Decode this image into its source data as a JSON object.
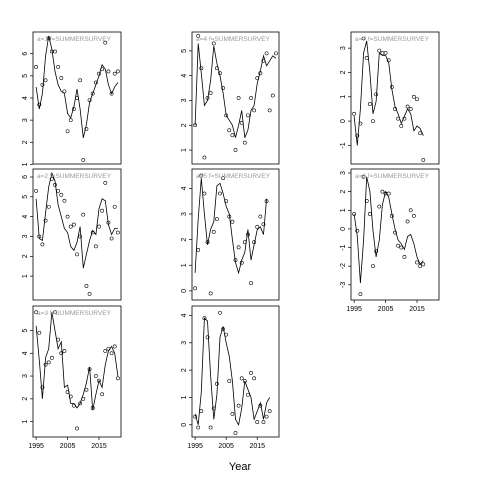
{
  "figure": {
    "xlabel": "Year"
  },
  "chart_data": [
    {
      "type": "line",
      "label": "a=1",
      "fleet": "f=SUMMERSURVEY",
      "x": [
        1995,
        1996,
        1997,
        1998,
        1999,
        2000,
        2001,
        2002,
        2003,
        2004,
        2005,
        2006,
        2007,
        2008,
        2009,
        2010,
        2011,
        2012,
        2013,
        2014,
        2015,
        2016,
        2017,
        2018,
        2019,
        2020,
        2021
      ],
      "observed": [
        5.4,
        3.7,
        4.6,
        4.8,
        6.7,
        6.1,
        6.1,
        5.4,
        4.9,
        4.3,
        2.5,
        3.0,
        3.5,
        4.0,
        4.8,
        1.2,
        2.6,
        3.9,
        4.2,
        4.7,
        5.1,
        5.3,
        6.5,
        5.2,
        4.2,
        5.1,
        5.2
      ],
      "fitted": [
        4.5,
        3.5,
        4.2,
        5.9,
        6.8,
        6.2,
        5.2,
        4.6,
        4.3,
        4.2,
        3.3,
        3.1,
        3.6,
        4.4,
        3.5,
        2.2,
        2.8,
        3.8,
        4.2,
        4.6,
        5.0,
        5.5,
        5.3,
        4.6,
        4.2,
        4.5,
        4.7
      ],
      "yticks": [
        1,
        2,
        3,
        4,
        5,
        6
      ],
      "ylim": [
        1.2,
        6.8
      ],
      "xticks": [
        1995,
        2005,
        2015
      ],
      "show_xticks": false
    },
    {
      "type": "line",
      "label": "a=4",
      "fleet": "f=SUMMERSURVEY",
      "x": [
        1995,
        1996,
        1997,
        1998,
        1999,
        2000,
        2001,
        2002,
        2003,
        2004,
        2005,
        2006,
        2007,
        2008,
        2009,
        2010,
        2011,
        2012,
        2013,
        2014,
        2015,
        2016,
        2017,
        2018,
        2019,
        2020,
        2021
      ],
      "observed": [
        2.0,
        5.6,
        4.3,
        0.7,
        3.1,
        3.3,
        5.3,
        4.3,
        4.1,
        3.5,
        2.4,
        1.8,
        1.6,
        1.0,
        3.1,
        2.1,
        1.3,
        2.4,
        3.1,
        2.6,
        3.9,
        4.1,
        4.6,
        4.9,
        2.6,
        3.2,
        4.9
      ],
      "fitted": [
        2.0,
        5.3,
        4.1,
        2.8,
        3.0,
        3.8,
        5.2,
        4.5,
        4.0,
        3.3,
        2.4,
        2.2,
        2.0,
        1.5,
        2.0,
        2.6,
        1.5,
        1.8,
        2.6,
        2.8,
        3.7,
        4.2,
        4.8,
        4.4,
        4.6,
        4.8,
        4.7
      ],
      "yticks": [
        1,
        2,
        3,
        4,
        5
      ],
      "ylim": [
        0.6,
        5.6
      ],
      "xticks": [
        1995,
        2005,
        2015
      ],
      "show_xticks": false
    },
    {
      "type": "line",
      "label": "a=7",
      "fleet": "f=SUMMERSURVEY",
      "x": [
        1995,
        1996,
        1997,
        1998,
        1999,
        2000,
        2001,
        2002,
        2003,
        2004,
        2005,
        2006,
        2007,
        2008,
        2009,
        2010,
        2011,
        2012,
        2013,
        2014,
        2015,
        2016,
        2017,
        2018,
        2019,
        2020,
        2021
      ],
      "observed": [
        0.3,
        -0.6,
        -0.1,
        3.4,
        2.6,
        0.7,
        0.0,
        1.1,
        2.9,
        2.8,
        2.8,
        2.5,
        1.4,
        0.5,
        0.1,
        -0.2,
        0.1,
        0.6,
        0.5,
        1.0,
        0.9,
        -0.5,
        -1.6,
        null,
        null,
        null,
        null
      ],
      "fitted": [
        0.2,
        -1.0,
        0.5,
        2.8,
        3.3,
        2.0,
        0.3,
        0.8,
        2.8,
        2.7,
        2.7,
        2.4,
        1.3,
        0.6,
        0.3,
        -0.1,
        0.2,
        0.5,
        0.3,
        -0.4,
        -0.2,
        -0.3,
        -0.6,
        null,
        null,
        null,
        null
      ],
      "yticks": [
        -1,
        0,
        1,
        2,
        3
      ],
      "ylim": [
        -1.6,
        3.5
      ],
      "xticks": [
        1995,
        2005,
        2015
      ],
      "show_xticks": false
    },
    {
      "type": "line",
      "label": "a=2",
      "fleet": "f=SUMMERSURVEY",
      "x": [
        1995,
        1996,
        1997,
        1998,
        1999,
        2000,
        2001,
        2002,
        2003,
        2004,
        2005,
        2006,
        2007,
        2008,
        2009,
        2010,
        2011,
        2012,
        2013,
        2014,
        2015,
        2016,
        2017,
        2018,
        2019,
        2020,
        2021
      ],
      "observed": [
        5.3,
        3.0,
        2.6,
        3.8,
        4.5,
        5.9,
        5.6,
        5.3,
        5.1,
        4.8,
        4.0,
        3.5,
        3.6,
        2.1,
        3.0,
        4.1,
        0.5,
        0.1,
        3.2,
        2.5,
        3.5,
        4.3,
        5.7,
        3.7,
        2.9,
        4.5,
        3.2
      ],
      "fitted": [
        4.9,
        2.9,
        2.8,
        4.2,
        5.5,
        6.2,
        5.8,
        4.6,
        4.0,
        3.4,
        3.2,
        2.5,
        2.3,
        2.7,
        3.5,
        1.4,
        2.1,
        2.8,
        3.3,
        3.1,
        4.4,
        4.9,
        4.8,
        3.6,
        3.1,
        3.4,
        3.4
      ],
      "yticks": [
        1,
        2,
        3,
        4,
        5,
        6
      ],
      "ylim": [
        0.0,
        6.2
      ],
      "xticks": [
        1995,
        2005,
        2015
      ],
      "show_xticks": false
    },
    {
      "type": "line",
      "label": "a=5",
      "fleet": "f=SUMMERSURVEY",
      "x": [
        1995,
        1996,
        1997,
        1998,
        1999,
        2000,
        2001,
        2002,
        2003,
        2004,
        2005,
        2006,
        2007,
        2008,
        2009,
        2010,
        2011,
        2012,
        2013,
        2014,
        2015,
        2016,
        2017,
        2018,
        2019,
        2020,
        2021
      ],
      "observed": [
        0.1,
        1.6,
        4.5,
        3.8,
        1.9,
        -0.1,
        2.3,
        2.8,
        3.8,
        4.4,
        3.5,
        2.9,
        2.7,
        1.2,
        1.7,
        1.1,
        1.9,
        2.2,
        0.3,
        1.9,
        2.5,
        2.9,
        2.6,
        3.5,
        null,
        null,
        null
      ],
      "fitted": [
        0.7,
        2.8,
        4.4,
        3.0,
        1.8,
        2.4,
        2.7,
        4.1,
        4.2,
        3.8,
        3.3,
        3.0,
        2.0,
        1.1,
        0.7,
        1.2,
        1.5,
        2.4,
        1.2,
        1.8,
        2.4,
        2.5,
        2.2,
        3.6,
        null,
        null,
        null
      ],
      "yticks": [
        0,
        1,
        2,
        3,
        4
      ],
      "ylim": [
        -0.2,
        4.6
      ],
      "xticks": [
        1995,
        2005,
        2015
      ],
      "show_xticks": false
    },
    {
      "type": "line",
      "label": "a=8",
      "fleet": "f=SUMMERSURVEY",
      "x": [
        1995,
        1996,
        1997,
        1998,
        1999,
        2000,
        2001,
        2002,
        2003,
        2004,
        2005,
        2006,
        2007,
        2008,
        2009,
        2010,
        2011,
        2012,
        2013,
        2014,
        2015,
        2016,
        2017,
        2018,
        2019,
        2020,
        2021
      ],
      "observed": [
        0.8,
        -0.1,
        -3.5,
        2.8,
        1.5,
        0.8,
        -2.0,
        -1.2,
        1.2,
        2.0,
        1.9,
        1.9,
        0.7,
        -0.2,
        -0.9,
        -1.0,
        -1.5,
        0.4,
        1.0,
        0.7,
        -1.8,
        -2.0,
        -1.9,
        null,
        null,
        null,
        null
      ],
      "fitted": [
        0.8,
        -0.4,
        -2.9,
        -0.6,
        2.8,
        2.0,
        -0.1,
        -1.5,
        -0.6,
        1.3,
        2.0,
        1.7,
        0.8,
        0.0,
        -0.6,
        -0.8,
        -1.1,
        -0.4,
        -0.3,
        -0.8,
        -1.5,
        -1.9,
        -1.7,
        null,
        null,
        null,
        null
      ],
      "yticks": [
        -3,
        -2,
        -1,
        0,
        1,
        2,
        3
      ],
      "ylim": [
        -3.6,
        3.0
      ],
      "xticks": [
        1995,
        2005,
        2015
      ],
      "show_xticks": true
    },
    {
      "type": "line",
      "label": "a=3",
      "fleet": "f=SUMMERSURVEY",
      "x": [
        1995,
        1996,
        1997,
        1998,
        1999,
        2000,
        2001,
        2002,
        2003,
        2004,
        2005,
        2006,
        2007,
        2008,
        2009,
        2010,
        2011,
        2012,
        2013,
        2014,
        2015,
        2016,
        2017,
        2018,
        2019,
        2020,
        2021
      ],
      "observed": [
        5.8,
        4.9,
        2.5,
        3.5,
        3.6,
        3.8,
        5.8,
        4.6,
        4.0,
        4.1,
        2.3,
        2.1,
        1.7,
        0.7,
        1.8,
        2.0,
        2.4,
        3.3,
        1.6,
        3.0,
        2.8,
        2.2,
        4.1,
        4.2,
        4.0,
        4.3,
        2.9
      ],
      "fitted": [
        5.2,
        3.7,
        2.0,
        3.8,
        4.2,
        5.8,
        5.0,
        4.2,
        4.5,
        2.5,
        2.6,
        1.8,
        1.8,
        1.6,
        1.8,
        2.2,
        2.7,
        3.4,
        1.5,
        2.2,
        2.8,
        2.5,
        3.5,
        4.1,
        4.3,
        4.0,
        3.0
      ],
      "yticks": [
        1,
        2,
        3,
        4,
        5
      ],
      "ylim": [
        0.5,
        5.9
      ],
      "xticks": [
        1995,
        2005,
        2015
      ],
      "show_xticks": true
    },
    {
      "type": "line",
      "label": "",
      "fleet": "",
      "x": [
        1995,
        1996,
        1997,
        1998,
        1999,
        2000,
        2001,
        2002,
        2003,
        2004,
        2005,
        2006,
        2007,
        2008,
        2009,
        2010,
        2011,
        2012,
        2013,
        2014,
        2015,
        2016,
        2017,
        2018,
        2019,
        2020,
        2021
      ],
      "observed": [
        0.3,
        -0.1,
        0.5,
        3.9,
        3.2,
        -0.1,
        0.6,
        1.5,
        4.1,
        3.5,
        3.3,
        1.6,
        0.4,
        -0.3,
        0.7,
        1.7,
        1.6,
        1.1,
        1.9,
        1.7,
        0.1,
        0.7,
        0.1,
        0.3,
        0.5,
        null,
        null
      ],
      "fitted": [
        0.4,
        0.0,
        1.2,
        3.9,
        3.8,
        1.8,
        0.2,
        1.1,
        3.2,
        3.6,
        3.0,
        2.5,
        1.6,
        0.2,
        0.0,
        0.6,
        1.6,
        1.3,
        1.0,
        0.2,
        0.5,
        0.8,
        0.2,
        0.8,
        1.0,
        null,
        null
      ],
      "yticks": [
        0,
        1,
        2,
        3,
        4
      ],
      "ylim": [
        -0.3,
        4.2
      ],
      "xticks": [
        1995,
        2005,
        2015
      ],
      "show_xticks": true
    }
  ]
}
